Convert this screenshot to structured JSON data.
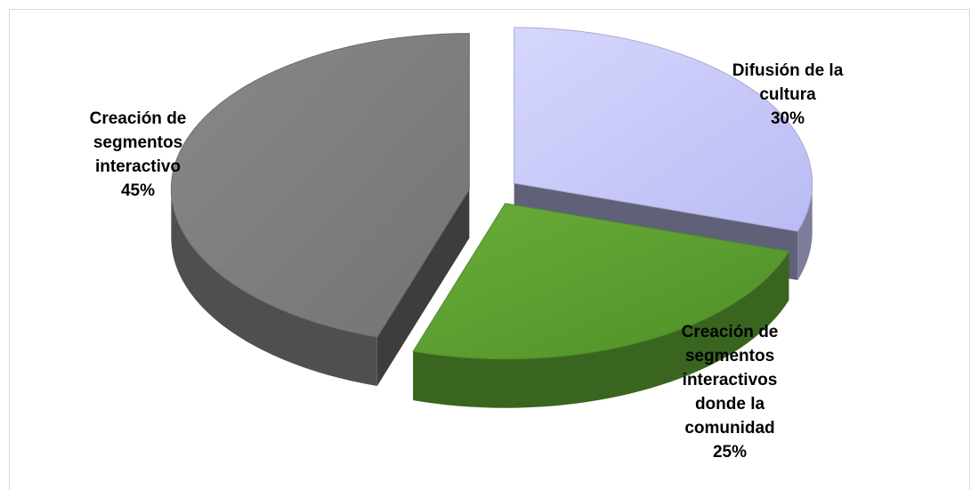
{
  "chart_data": {
    "type": "pie",
    "style": "3d-exploded",
    "legend": "none",
    "slices": [
      {
        "label_lines": [
          "Difusión  de la",
          "cultura"
        ],
        "percent_text": "30%",
        "value": 30,
        "color": "#c8c9fa"
      },
      {
        "label_lines": [
          "Creación de",
          "segmentos",
          "interactivos",
          "donde la",
          "comunidad"
        ],
        "percent_text": "25%",
        "value": 25,
        "color": "#5ea332"
      },
      {
        "label_lines": [
          "Creación de",
          "segmentos",
          "interactivo"
        ],
        "percent_text": "45%",
        "value": 45,
        "color": "#808080"
      }
    ]
  }
}
